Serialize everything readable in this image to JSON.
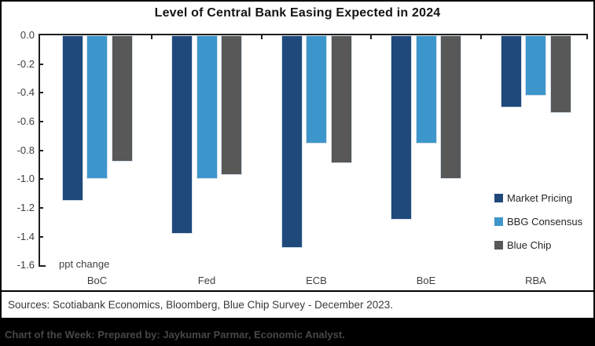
{
  "sources_line": "Sources: Scotiabank Economics, Bloomberg, Blue Chip Survey - December 2023.",
  "footer_line": "Chart of the Week: Prepared by: Jaykumar Parmar, Economic Analyst.",
  "colors": {
    "market_pricing": "#20497B",
    "bbg_consensus": "#3D96CB",
    "blue_chip": "#585858",
    "axis": "#1f1f1f",
    "page_border": "#000000",
    "footer_bg": "#000000",
    "footer_text": "#474747"
  },
  "chart_data": {
    "type": "bar",
    "title": "Level of Central Bank Easing Expected in 2024",
    "unit_label": "ppt change",
    "categories": [
      "BoC",
      "Fed",
      "ECB",
      "BoE",
      "RBA"
    ],
    "series": [
      {
        "name": "Market Pricing",
        "color": "#20497B",
        "values": [
          -1.15,
          -1.38,
          -1.48,
          -1.28,
          -0.5
        ]
      },
      {
        "name": "BBG Consensus",
        "color": "#3D96CB",
        "values": [
          -1.0,
          -1.0,
          -0.75,
          -0.75,
          -0.42
        ]
      },
      {
        "name": "Blue Chip",
        "color": "#585858",
        "values": [
          -0.88,
          -0.97,
          -0.89,
          -1.0,
          -0.54
        ]
      }
    ],
    "xlabel": "",
    "ylabel": "",
    "ylim": [
      -1.6,
      0.0
    ],
    "yticks": [
      0.0,
      -0.2,
      -0.4,
      -0.6,
      -0.8,
      -1.0,
      -1.2,
      -1.4,
      -1.6
    ],
    "grid": false,
    "legend_position": "inside-right",
    "bars_hang_from_zero": true
  }
}
